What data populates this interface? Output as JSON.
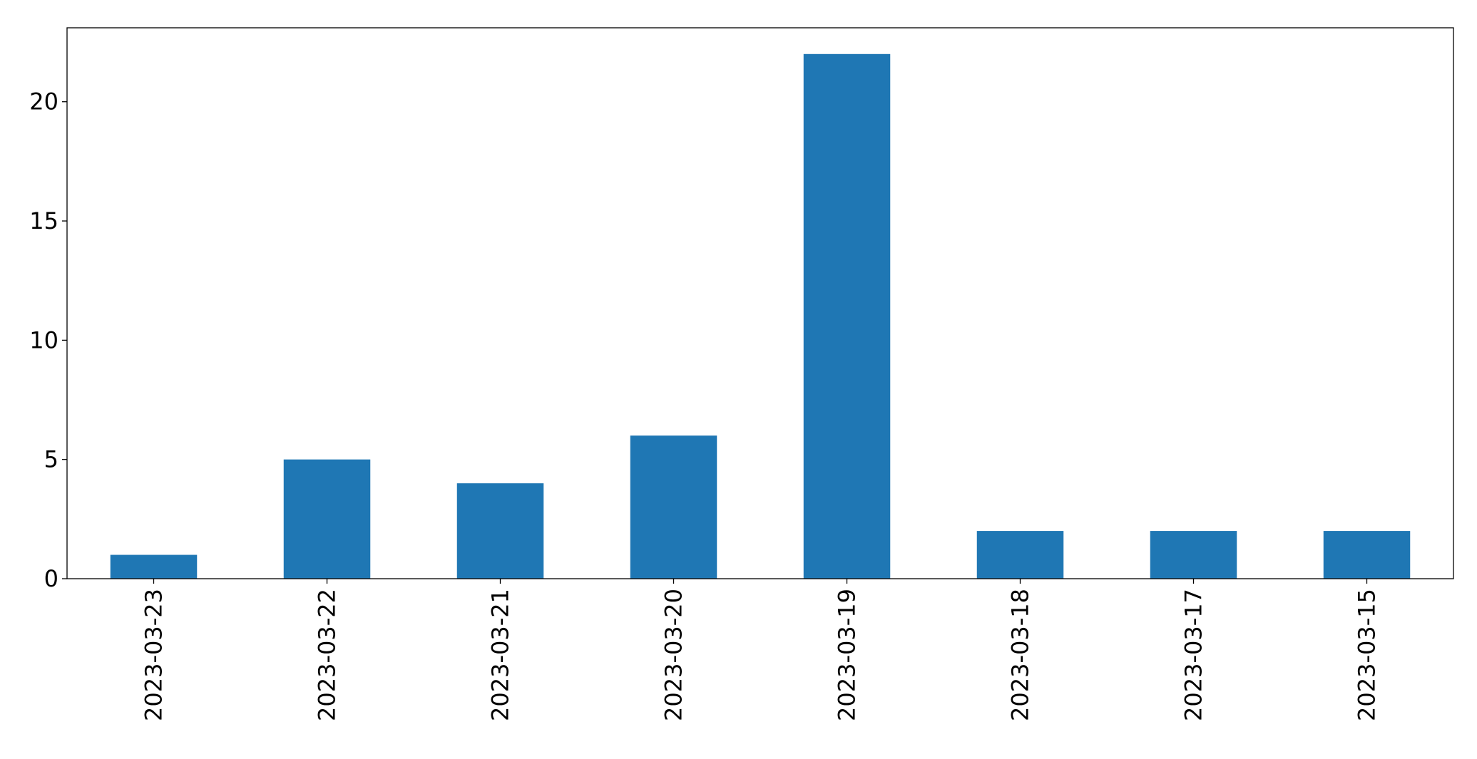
{
  "chart_data": {
    "type": "bar",
    "title": "",
    "xlabel": "",
    "ylabel": "",
    "categories": [
      "2023-03-23",
      "2023-03-22",
      "2023-03-21",
      "2023-03-20",
      "2023-03-19",
      "2023-03-18",
      "2023-03-17",
      "2023-03-15"
    ],
    "values": [
      1,
      5,
      4,
      6,
      22,
      2,
      2,
      2
    ],
    "ylim": [
      0,
      23.1
    ],
    "yticks": [
      0,
      5,
      10,
      15,
      20
    ],
    "grid": false,
    "legend": "none",
    "bar_color": "#1f77b4",
    "x_tick_rotation": "vertical"
  }
}
